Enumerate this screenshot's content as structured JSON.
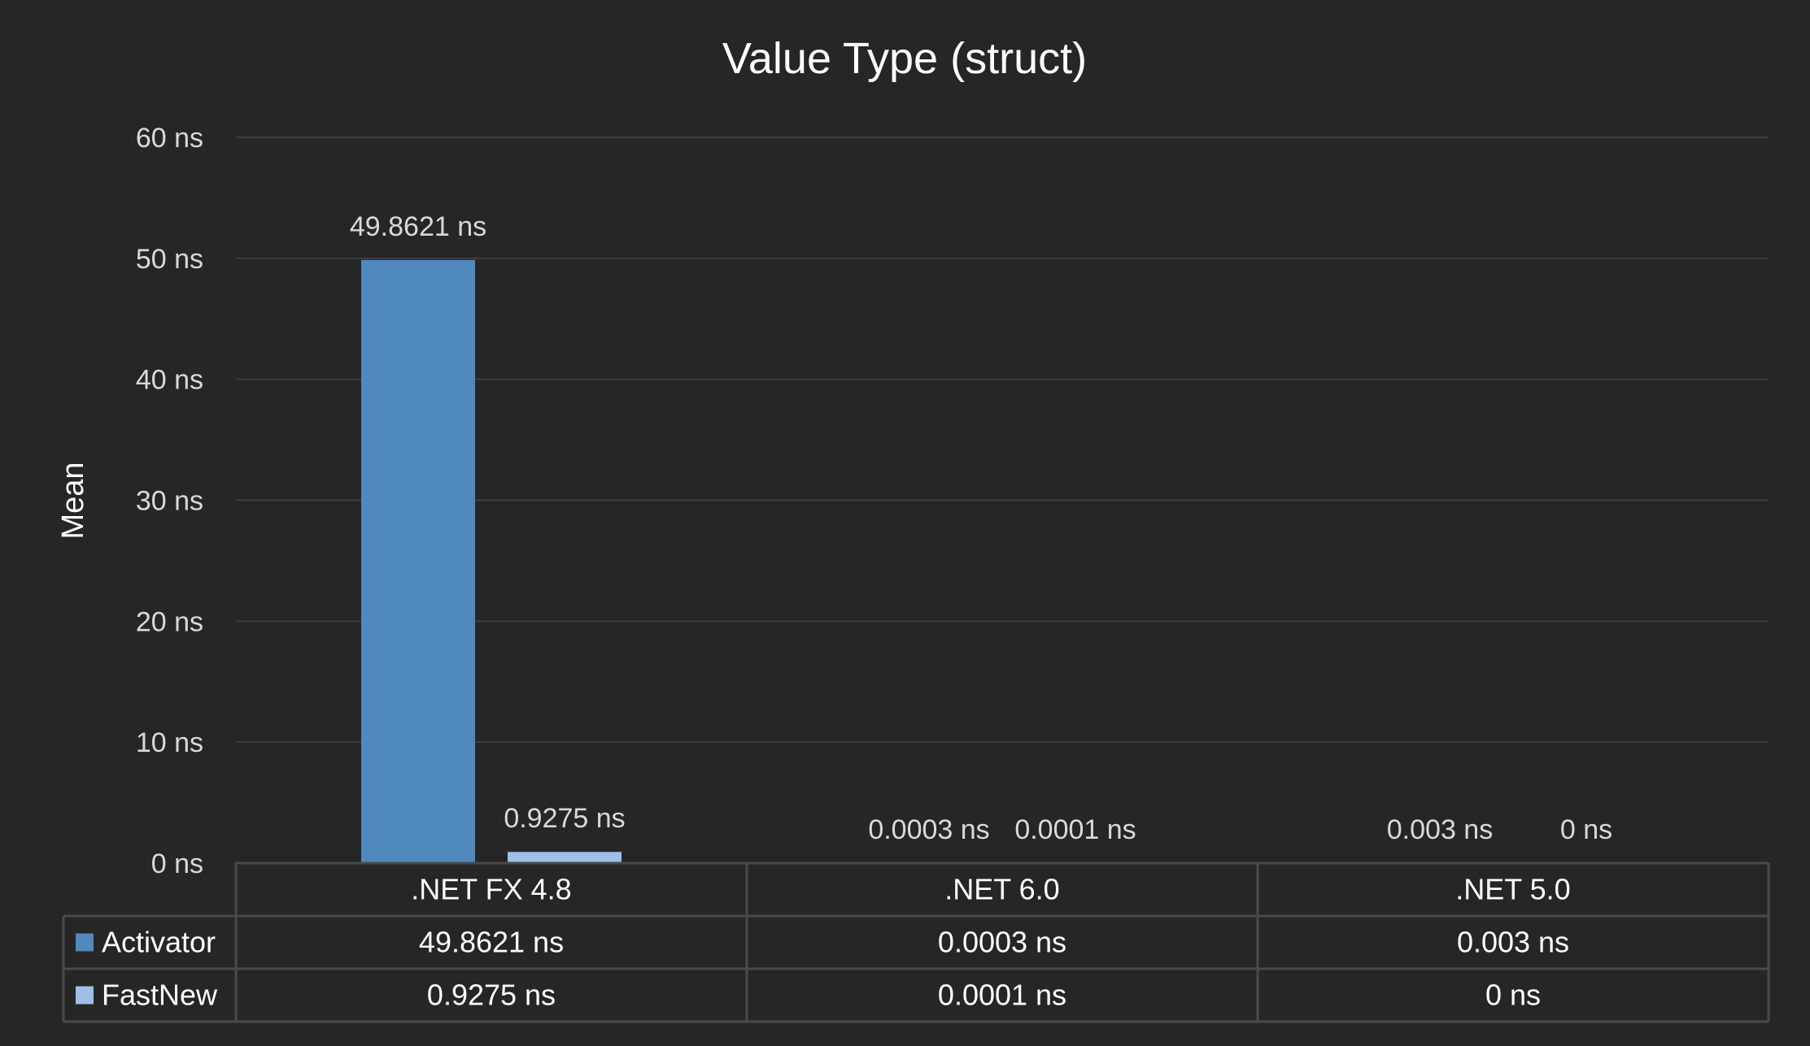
{
  "chart_data": {
    "type": "bar",
    "title": "Value Type (struct)",
    "xlabel": "",
    "ylabel": "Mean",
    "unit": "ns",
    "ylim": [
      0,
      60
    ],
    "yticks": [
      0,
      10,
      20,
      30,
      40,
      50,
      60
    ],
    "ytick_labels": [
      "0 ns",
      "10 ns",
      "20 ns",
      "30 ns",
      "40 ns",
      "50 ns",
      "60 ns"
    ],
    "grid": true,
    "legend_placement": "data-table",
    "categories": [
      ".NET FX 4.8",
      ".NET 6.0",
      ".NET 5.0"
    ],
    "series": [
      {
        "name": "Activator",
        "color": "#4f89be",
        "values": [
          49.8621,
          0.0003,
          0.003
        ],
        "labels": [
          "49.8621 ns",
          "0.0003 ns",
          "0.003 ns"
        ]
      },
      {
        "name": "FastNew",
        "color": "#9fbfe6",
        "values": [
          0.9275,
          0.0001,
          0
        ],
        "labels": [
          "0.9275 ns",
          "0.0001 ns",
          "0 ns"
        ]
      }
    ]
  },
  "colors": {
    "background": "#262626",
    "gridline": "#3e3e3e",
    "text": "#ffffff",
    "muted_text": "#d9d9d9",
    "table_border": "#4a4a4a"
  }
}
